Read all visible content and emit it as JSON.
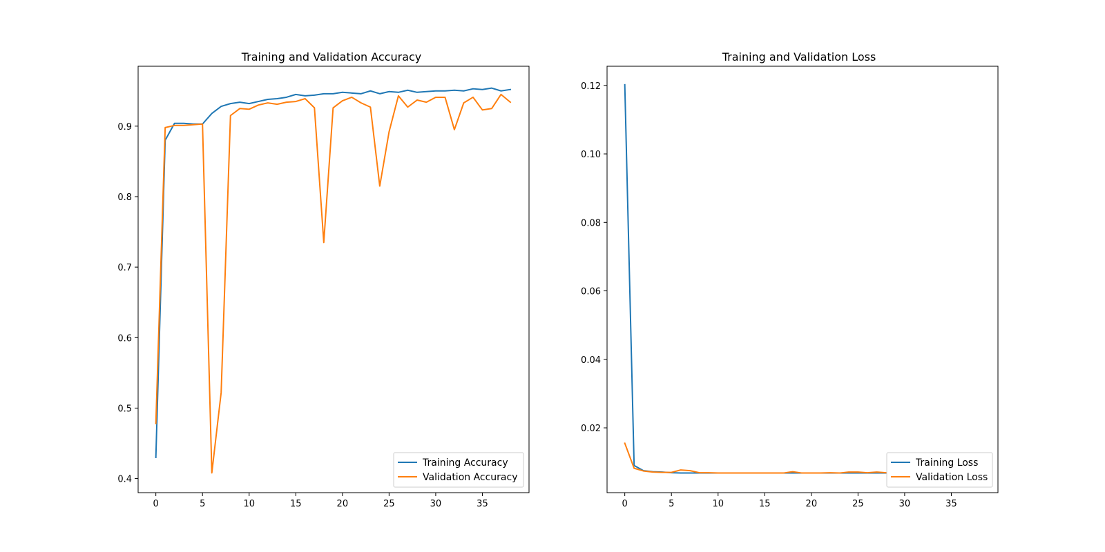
{
  "chart_data": [
    {
      "type": "line",
      "title": "Training and Validation Accuracy",
      "xlabel": "",
      "ylabel": "",
      "xlim": [
        -1.9,
        40.0
      ],
      "ylim": [
        0.38,
        0.985
      ],
      "xticks": [
        0,
        5,
        10,
        15,
        20,
        25,
        30,
        35
      ],
      "yticks": [
        0.4,
        0.5,
        0.6,
        0.7,
        0.8,
        0.9
      ],
      "grid": false,
      "legend_position": "lower right",
      "x": [
        0,
        1,
        2,
        3,
        4,
        5,
        6,
        7,
        8,
        9,
        10,
        11,
        12,
        13,
        14,
        15,
        16,
        17,
        18,
        19,
        20,
        21,
        22,
        23,
        24,
        25,
        26,
        27,
        28,
        29,
        30,
        31,
        32,
        33,
        34,
        35,
        36,
        37,
        38
      ],
      "series": [
        {
          "name": "Training Accuracy",
          "color": "#1f77b4",
          "values": [
            0.43,
            0.88,
            0.904,
            0.904,
            0.903,
            0.903,
            0.918,
            0.928,
            0.932,
            0.934,
            0.932,
            0.935,
            0.938,
            0.939,
            0.941,
            0.945,
            0.943,
            0.944,
            0.946,
            0.946,
            0.948,
            0.947,
            0.946,
            0.95,
            0.946,
            0.949,
            0.948,
            0.951,
            0.948,
            0.949,
            0.95,
            0.95,
            0.951,
            0.95,
            0.953,
            0.952,
            0.954,
            0.95,
            0.952
          ]
        },
        {
          "name": "Validation Accuracy",
          "color": "#ff7f0e",
          "values": [
            0.478,
            0.898,
            0.901,
            0.901,
            0.902,
            0.903,
            0.408,
            0.522,
            0.915,
            0.925,
            0.924,
            0.93,
            0.933,
            0.931,
            0.934,
            0.935,
            0.939,
            0.926,
            0.735,
            0.926,
            0.936,
            0.941,
            0.933,
            0.927,
            0.815,
            0.892,
            0.943,
            0.927,
            0.937,
            0.934,
            0.941,
            0.941,
            0.895,
            0.933,
            0.941,
            0.923,
            0.925,
            0.945,
            0.934
          ]
        }
      ]
    },
    {
      "type": "line",
      "title": "Training and Validation Loss",
      "xlabel": "",
      "ylabel": "",
      "xlim": [
        -1.9,
        40.0
      ],
      "ylim": [
        0.00107,
        0.1256
      ],
      "xticks": [
        0,
        5,
        10,
        15,
        20,
        25,
        30,
        35
      ],
      "yticks": [
        0.02,
        0.04,
        0.06,
        0.08,
        0.1,
        0.12
      ],
      "ytick_labels": [
        "0.02",
        "0.04",
        "0.06",
        "0.08",
        "0.10",
        "0.12"
      ],
      "grid": false,
      "legend_position": "lower right",
      "x": [
        0,
        1,
        2,
        3,
        4,
        5,
        6,
        7,
        8,
        9,
        10,
        11,
        12,
        13,
        14,
        15,
        16,
        17,
        18,
        19,
        20,
        21,
        22,
        23,
        24,
        25,
        26,
        27,
        28,
        29,
        30,
        31,
        32,
        33,
        34,
        35,
        36,
        37,
        38
      ],
      "series": [
        {
          "name": "Training Loss",
          "color": "#1f77b4",
          "values": [
            0.1202,
            0.009,
            0.0075,
            0.0072,
            0.0071,
            0.0069,
            0.0068,
            0.0068,
            0.0068,
            0.0068,
            0.0068,
            0.0068,
            0.0068,
            0.0068,
            0.0068,
            0.0068,
            0.0068,
            0.0068,
            0.0068,
            0.0068,
            0.0068,
            0.0068,
            0.0068,
            0.0068,
            0.0068,
            0.0068,
            0.0068,
            0.0068,
            0.0068,
            0.0068,
            0.0068,
            0.0068,
            0.0068,
            0.0068,
            0.0068,
            0.0068,
            0.0068,
            0.0068,
            0.0068
          ]
        },
        {
          "name": "Validation Loss",
          "color": "#ff7f0e",
          "values": [
            0.0155,
            0.0082,
            0.0074,
            0.0071,
            0.007,
            0.007,
            0.0077,
            0.0075,
            0.0069,
            0.0069,
            0.0068,
            0.0068,
            0.0068,
            0.0068,
            0.0068,
            0.0068,
            0.0068,
            0.0068,
            0.0072,
            0.0068,
            0.0068,
            0.0068,
            0.0069,
            0.0068,
            0.0071,
            0.0071,
            0.0069,
            0.0071,
            0.0069,
            0.0069,
            0.0068,
            0.0068,
            0.0068,
            0.0068,
            0.0068,
            0.0068,
            0.0068,
            0.0068,
            0.0068
          ]
        }
      ]
    }
  ]
}
